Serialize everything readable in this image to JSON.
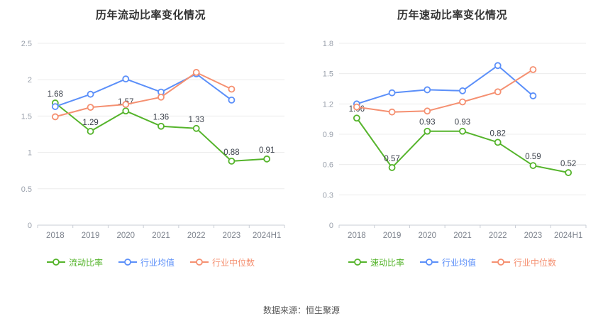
{
  "page": {
    "background": "#ffffff",
    "source_note": "数据来源：恒生聚源"
  },
  "chart_data": [
    {
      "type": "line",
      "title": "历年流动比率变化情况",
      "categories": [
        "2018",
        "2019",
        "2020",
        "2021",
        "2022",
        "2023",
        "2024H1"
      ],
      "ylim": [
        0,
        2.5
      ],
      "yticks": [
        0,
        0.5,
        1,
        1.5,
        2,
        2.5
      ],
      "grid": true,
      "legend_position": "bottom",
      "series": [
        {
          "name": "流动比率",
          "color": "#55b42b",
          "show_labels": true,
          "values": [
            1.68,
            1.29,
            1.57,
            1.36,
            1.33,
            0.88,
            0.91
          ]
        },
        {
          "name": "行业均值",
          "color": "#5b8ff9",
          "show_labels": false,
          "values": [
            1.63,
            1.8,
            2.01,
            1.83,
            2.08,
            1.72,
            null
          ]
        },
        {
          "name": "行业中位数",
          "color": "#f59071",
          "show_labels": false,
          "values": [
            1.49,
            1.62,
            1.66,
            1.76,
            2.1,
            1.87,
            null
          ]
        }
      ]
    },
    {
      "type": "line",
      "title": "历年速动比率变化情况",
      "categories": [
        "2018",
        "2019",
        "2020",
        "2021",
        "2022",
        "2023",
        "2024H1"
      ],
      "ylim": [
        0,
        1.8
      ],
      "yticks": [
        0,
        0.3,
        0.6,
        0.9,
        1.2,
        1.5,
        1.8
      ],
      "grid": true,
      "legend_position": "bottom",
      "series": [
        {
          "name": "速动比率",
          "color": "#55b42b",
          "show_labels": true,
          "values": [
            1.06,
            0.57,
            0.93,
            0.93,
            0.82,
            0.59,
            0.52
          ]
        },
        {
          "name": "行业均值",
          "color": "#5b8ff9",
          "show_labels": false,
          "values": [
            1.2,
            1.31,
            1.34,
            1.33,
            1.58,
            1.28,
            null
          ]
        },
        {
          "name": "行业中位数",
          "color": "#f59071",
          "show_labels": false,
          "values": [
            1.17,
            1.12,
            1.13,
            1.22,
            1.32,
            1.54,
            null
          ]
        }
      ]
    }
  ]
}
